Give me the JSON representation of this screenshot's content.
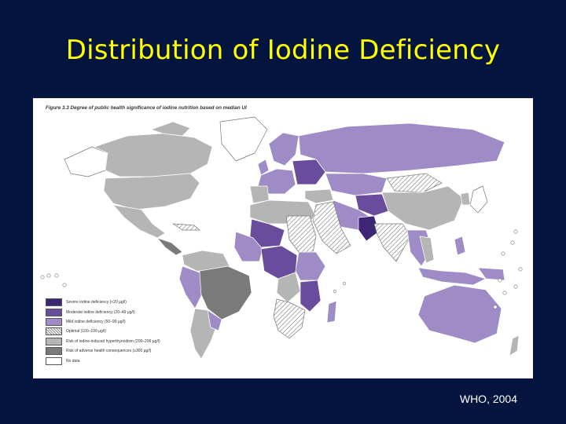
{
  "slide": {
    "title": "Distribution of Iodine Deficiency",
    "credit": "WHO, 2004"
  },
  "figure": {
    "caption": "Figure 3.3  Degree of public health significance of iodine nutrition based on median UI"
  },
  "legend": {
    "items": [
      {
        "label": "Severe iodine deficiency (<20 µg/l)",
        "color": "#3d2673"
      },
      {
        "label": "Moderate iodine deficiency (20–49 µg/l)",
        "color": "#6a4c9c"
      },
      {
        "label": "Mild iodine deficiency (50–99 µg/l)",
        "color": "#9f8cc6"
      },
      {
        "label": "Optimal (100–199 µg/l)",
        "color": "hatch"
      },
      {
        "label": "Risk of iodine-induced hyperthyroidism (200–299 µg/l)",
        "color": "#b5b5b5"
      },
      {
        "label": "Risk of adverse health consequences (≥300 µg/l)",
        "color": "#7a7a7a"
      },
      {
        "label": "No data",
        "color": "#ffffff"
      }
    ]
  },
  "colors": {
    "background": "#03153f",
    "title": "#ffff00",
    "severe": "#3d2673",
    "moderate": "#6a4c9c",
    "mild": "#9f8cc6",
    "hyperthyroid_risk": "#b5b5b5",
    "adverse": "#7a7a7a",
    "no_data": "#ffffff"
  }
}
